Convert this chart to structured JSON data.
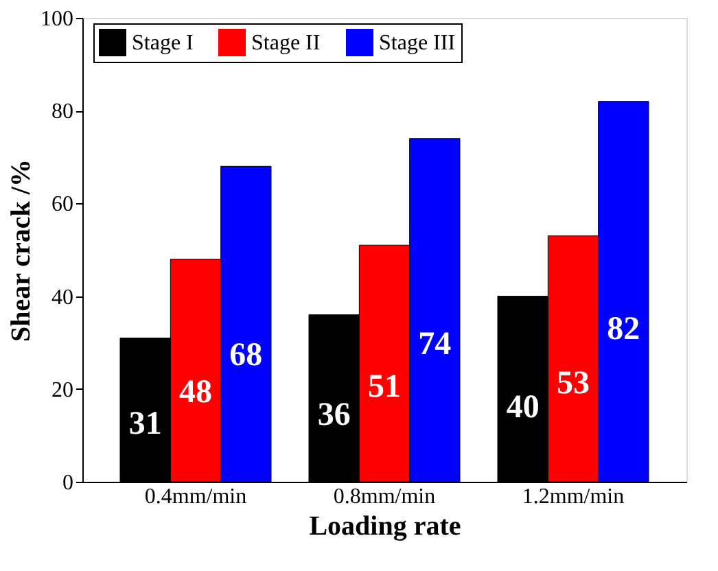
{
  "chart_data": {
    "type": "bar",
    "xlabel": "Loading rate",
    "ylabel": "Shear crack /%",
    "categories": [
      "0.4mm/min",
      "0.8mm/min",
      "1.2mm/min"
    ],
    "series": [
      {
        "name": "Stage I",
        "color": "#000000",
        "values": [
          31,
          36,
          40
        ]
      },
      {
        "name": "Stage II",
        "color": "#ff0000",
        "values": [
          48,
          51,
          53
        ]
      },
      {
        "name": "Stage III",
        "color": "#0000ff",
        "values": [
          68,
          74,
          82
        ]
      }
    ],
    "ylim": [
      0,
      100
    ],
    "yticks": [
      0,
      20,
      40,
      60,
      80,
      100
    ],
    "grid": false,
    "legend": "top",
    "data_labels": true
  }
}
